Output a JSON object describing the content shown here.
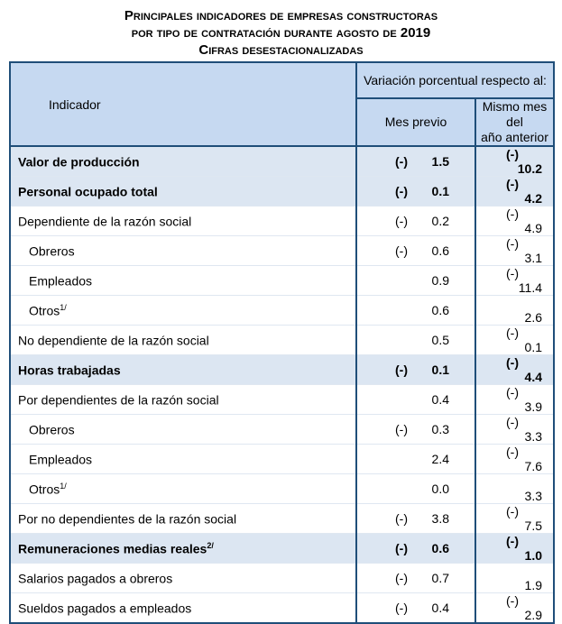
{
  "title": {
    "line1": "Principales indicadores de empresas constructoras",
    "line2": "por tipo de contratación durante agosto de 2019",
    "line3": "Cifras desestacionalizadas"
  },
  "header": {
    "indicador": "Indicador",
    "variacion": "Variación porcentual respecto al:",
    "mes_previo": "Mes previo",
    "mismo_mes_1": "Mismo mes del",
    "mismo_mes_2": "año anterior"
  },
  "colors": {
    "border": "#1f4e79",
    "header_bg": "#c6d9f1",
    "bold_row_bg": "#dce6f2"
  },
  "rows": [
    {
      "label": "Valor de producción",
      "sup": "",
      "bold": true,
      "mp_sign": "(-)",
      "mp": "1.5",
      "ma_sign": "(-)",
      "ma": "10.2"
    },
    {
      "label": "Personal ocupado total",
      "sup": "",
      "bold": true,
      "mp_sign": "(-)",
      "mp": "0.1",
      "ma_sign": "(-)",
      "ma": "4.2"
    },
    {
      "label": "Dependiente de la razón social",
      "sup": "",
      "bold": false,
      "mp_sign": "(-)",
      "mp": "0.2",
      "ma_sign": "(-)",
      "ma": "4.9"
    },
    {
      "label": "Obreros",
      "sup": "",
      "bold": false,
      "indent": true,
      "mp_sign": "(-)",
      "mp": "0.6",
      "ma_sign": "(-)",
      "ma": "3.1"
    },
    {
      "label": "Empleados",
      "sup": "",
      "bold": false,
      "indent": true,
      "mp_sign": "",
      "mp": "0.9",
      "ma_sign": "(-)",
      "ma": "11.4"
    },
    {
      "label": "Otros",
      "sup": "1/",
      "bold": false,
      "indent": true,
      "mp_sign": "",
      "mp": "0.6",
      "ma_sign": "",
      "ma": "2.6"
    },
    {
      "label": "No dependiente de la razón social",
      "sup": "",
      "bold": false,
      "mp_sign": "",
      "mp": "0.5",
      "ma_sign": "(-)",
      "ma": "0.1"
    },
    {
      "label": "Horas trabajadas",
      "sup": "",
      "bold": true,
      "mp_sign": "(-)",
      "mp": "0.1",
      "ma_sign": "(-)",
      "ma": "4.4"
    },
    {
      "label": "Por dependientes de la razón social",
      "sup": "",
      "bold": false,
      "mp_sign": "",
      "mp": "0.4",
      "ma_sign": "(-)",
      "ma": "3.9"
    },
    {
      "label": "Obreros",
      "sup": "",
      "bold": false,
      "indent": true,
      "mp_sign": "(-)",
      "mp": "0.3",
      "ma_sign": "(-)",
      "ma": "3.3"
    },
    {
      "label": "Empleados",
      "sup": "",
      "bold": false,
      "indent": true,
      "mp_sign": "",
      "mp": "2.4",
      "ma_sign": "(-)",
      "ma": "7.6"
    },
    {
      "label": "Otros",
      "sup": "1/",
      "bold": false,
      "indent": true,
      "mp_sign": "",
      "mp": "0.0",
      "ma_sign": "",
      "ma": "3.3"
    },
    {
      "label": "Por no dependientes de la razón social",
      "sup": "",
      "bold": false,
      "mp_sign": "(-)",
      "mp": "3.8",
      "ma_sign": "(-)",
      "ma": "7.5"
    },
    {
      "label": "Remuneraciones medias reales",
      "sup": "2/",
      "bold": true,
      "mp_sign": "(-)",
      "mp": "0.6",
      "ma_sign": "(-)",
      "ma": "1.0"
    },
    {
      "label": "Salarios pagados a obreros",
      "sup": "",
      "bold": false,
      "mp_sign": "(-)",
      "mp": "0.7",
      "ma_sign": "",
      "ma": "1.9"
    },
    {
      "label": "Sueldos pagados a empleados",
      "sup": "",
      "bold": false,
      "mp_sign": "(-)",
      "mp": "0.4",
      "ma_sign": "(-)",
      "ma": "2.9"
    }
  ]
}
